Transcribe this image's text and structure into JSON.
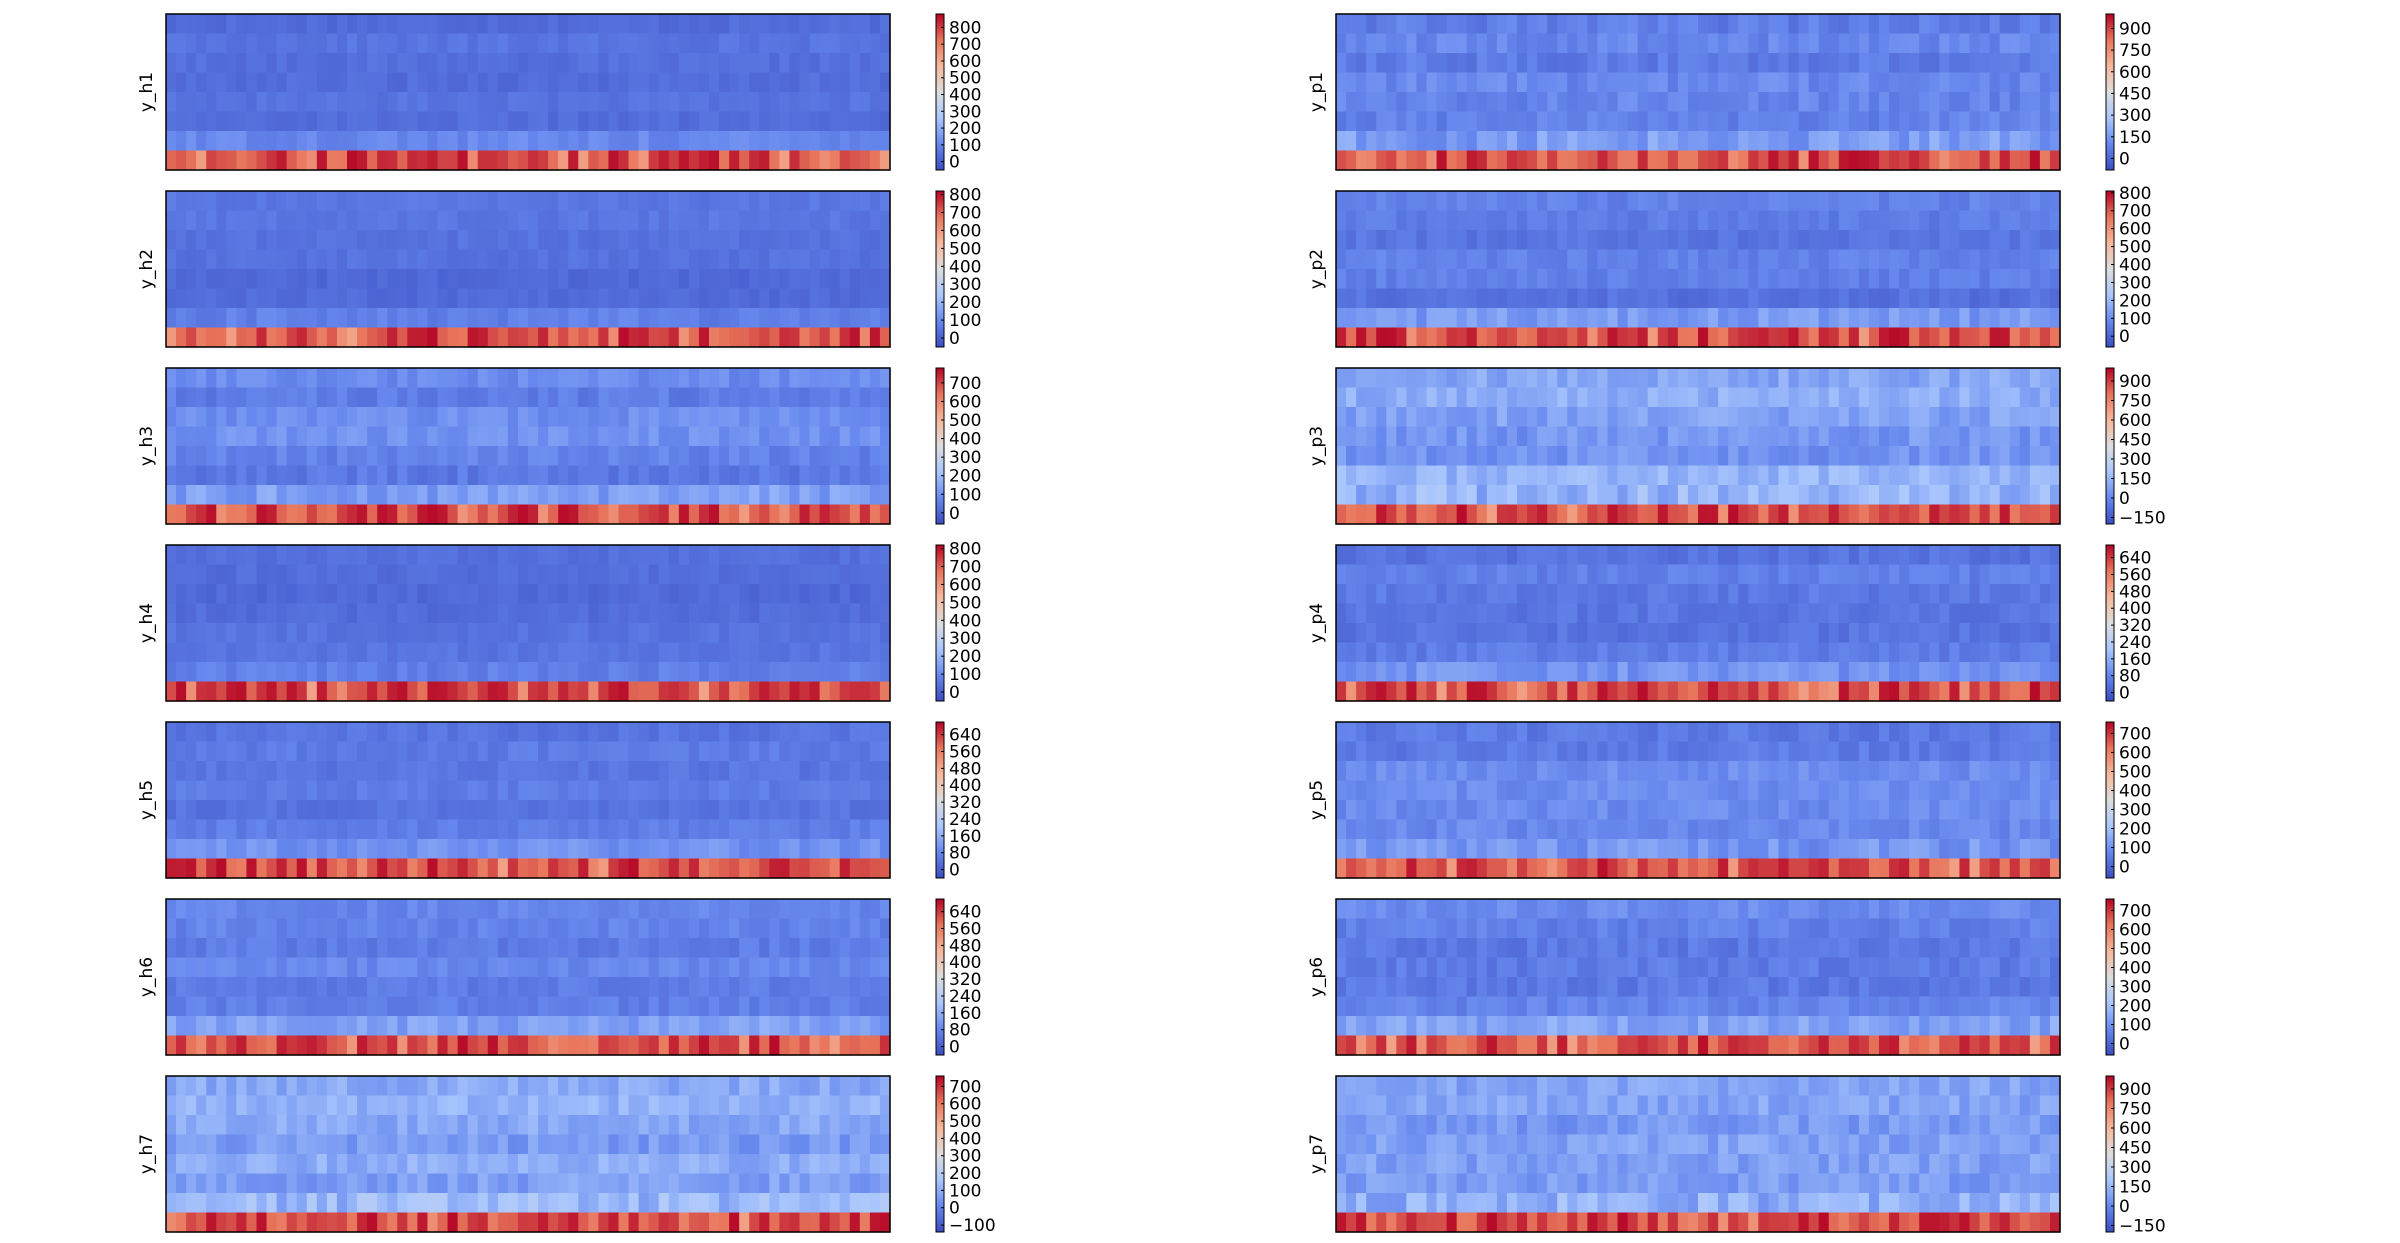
{
  "figure": {
    "rows": 8,
    "cols": 72,
    "colormap_stops": [
      "#3b4cc0",
      "#6688ee",
      "#aac7fd",
      "#dddddd",
      "#f7b89c",
      "#e7745b",
      "#b40426"
    ]
  },
  "chart_data": [
    {
      "type": "heatmap",
      "ylabel": "y_h1",
      "vmin": -50,
      "vmax": 880,
      "ticks": [
        0,
        100,
        200,
        300,
        400,
        500,
        600,
        700,
        800
      ],
      "bg_level": 0.1,
      "variability": 0.04
    },
    {
      "type": "heatmap",
      "ylabel": "y_p1",
      "vmin": -80,
      "vmax": 1000,
      "ticks": [
        0,
        150,
        300,
        450,
        600,
        750,
        900
      ],
      "bg_level": 0.17,
      "variability": 0.08
    },
    {
      "type": "heatmap",
      "ylabel": "y_h2",
      "vmin": -50,
      "vmax": 820,
      "ticks": [
        0,
        100,
        200,
        300,
        400,
        500,
        600,
        700,
        800
      ],
      "bg_level": 0.1,
      "variability": 0.04
    },
    {
      "type": "heatmap",
      "ylabel": "y_p2",
      "vmin": -60,
      "vmax": 810,
      "ticks": [
        0,
        100,
        200,
        300,
        400,
        500,
        600,
        700,
        800
      ],
      "bg_level": 0.13,
      "variability": 0.06
    },
    {
      "type": "heatmap",
      "ylabel": "y_h3",
      "vmin": -60,
      "vmax": 780,
      "ticks": [
        0,
        100,
        200,
        300,
        400,
        500,
        600,
        700
      ],
      "bg_level": 0.16,
      "variability": 0.07
    },
    {
      "type": "heatmap",
      "ylabel": "y_p3",
      "vmin": -200,
      "vmax": 1000,
      "ticks": [
        -150,
        0,
        150,
        300,
        450,
        600,
        750,
        900
      ],
      "bg_level": 0.24,
      "variability": 0.1
    },
    {
      "type": "heatmap",
      "ylabel": "y_h4",
      "vmin": -50,
      "vmax": 820,
      "ticks": [
        0,
        100,
        200,
        300,
        400,
        500,
        600,
        700,
        800
      ],
      "bg_level": 0.1,
      "variability": 0.04
    },
    {
      "type": "heatmap",
      "ylabel": "y_p4",
      "vmin": -40,
      "vmax": 700,
      "ticks": [
        0,
        80,
        160,
        240,
        320,
        400,
        480,
        560,
        640
      ],
      "bg_level": 0.12,
      "variability": 0.06
    },
    {
      "type": "heatmap",
      "ylabel": "y_h5",
      "vmin": -40,
      "vmax": 700,
      "ticks": [
        0,
        80,
        160,
        240,
        320,
        400,
        480,
        560,
        640
      ],
      "bg_level": 0.13,
      "variability": 0.05
    },
    {
      "type": "heatmap",
      "ylabel": "y_p5",
      "vmin": -60,
      "vmax": 760,
      "ticks": [
        0,
        100,
        200,
        300,
        400,
        500,
        600,
        700
      ],
      "bg_level": 0.16,
      "variability": 0.07
    },
    {
      "type": "heatmap",
      "ylabel": "y_h6",
      "vmin": -40,
      "vmax": 700,
      "ticks": [
        0,
        80,
        160,
        240,
        320,
        400,
        480,
        560,
        640
      ],
      "bg_level": 0.14,
      "variability": 0.06
    },
    {
      "type": "heatmap",
      "ylabel": "y_p6",
      "vmin": -60,
      "vmax": 760,
      "ticks": [
        0,
        100,
        200,
        300,
        400,
        500,
        600,
        700
      ],
      "bg_level": 0.16,
      "variability": 0.07
    },
    {
      "type": "heatmap",
      "ylabel": "y_h7",
      "vmin": -140,
      "vmax": 760,
      "ticks": [
        -100,
        0,
        100,
        200,
        300,
        400,
        500,
        600,
        700
      ],
      "bg_level": 0.24,
      "variability": 0.1
    },
    {
      "type": "heatmap",
      "ylabel": "y_p7",
      "vmin": -200,
      "vmax": 1000,
      "ticks": [
        -150,
        0,
        150,
        300,
        450,
        600,
        750,
        900
      ],
      "bg_level": 0.24,
      "variability": 0.1
    }
  ]
}
